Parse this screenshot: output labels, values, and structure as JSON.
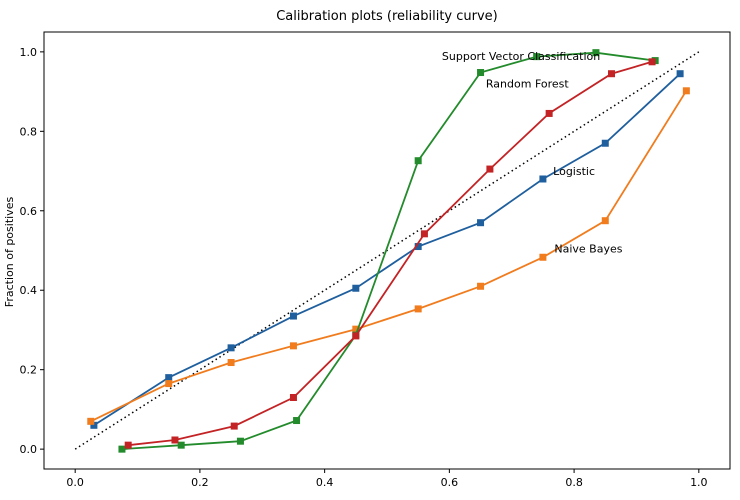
{
  "chart_data": {
    "type": "line",
    "title": "Calibration plots  (reliability curve)",
    "xlabel": "",
    "ylabel": "Fraction of positives",
    "xlim": [
      -0.05,
      1.05
    ],
    "ylim": [
      -0.05,
      1.05
    ],
    "x_ticks": [
      "0.0",
      "0.2",
      "0.4",
      "0.6",
      "0.8",
      "1.0"
    ],
    "y_ticks": [
      "0.0",
      "0.2",
      "0.4",
      "0.6",
      "0.8",
      "1.0"
    ],
    "grid": false,
    "legend": "none",
    "reference_line": {
      "x": [
        0,
        1
      ],
      "y": [
        0,
        1
      ],
      "style": "dotted",
      "color": "#000000"
    },
    "series": [
      {
        "name": "Logistic",
        "color": "#1f5f9e",
        "x": [
          0.03,
          0.15,
          0.25,
          0.35,
          0.45,
          0.55,
          0.65,
          0.75,
          0.85,
          0.97
        ],
        "y": [
          0.06,
          0.18,
          0.255,
          0.335,
          0.405,
          0.51,
          0.57,
          0.68,
          0.77,
          0.945
        ]
      },
      {
        "name": "Naive Bayes",
        "color": "#f07c1e",
        "x": [
          0.025,
          0.15,
          0.25,
          0.35,
          0.45,
          0.55,
          0.65,
          0.75,
          0.85,
          0.98
        ],
        "y": [
          0.07,
          0.165,
          0.218,
          0.26,
          0.302,
          0.353,
          0.41,
          0.483,
          0.575,
          0.902
        ]
      },
      {
        "name": "Support Vector Classification",
        "color": "#238b2b",
        "x": [
          0.075,
          0.17,
          0.265,
          0.355,
          0.45,
          0.55,
          0.65,
          0.74,
          0.835,
          0.93
        ],
        "y": [
          0.0,
          0.01,
          0.02,
          0.072,
          0.287,
          0.726,
          0.948,
          0.988,
          0.998,
          0.978
        ]
      },
      {
        "name": "Random Forest",
        "color": "#c32325",
        "x": [
          0.085,
          0.16,
          0.255,
          0.35,
          0.45,
          0.56,
          0.665,
          0.76,
          0.86,
          0.925
        ],
        "y": [
          0.01,
          0.023,
          0.058,
          0.13,
          0.285,
          0.542,
          0.705,
          0.845,
          0.945,
          0.975
        ]
      }
    ],
    "annotations": [
      {
        "text": "Support Vector Classification",
        "x": 0.715,
        "y": 0.98
      },
      {
        "text": "Random Forest",
        "x": 0.725,
        "y": 0.91
      },
      {
        "text": "Logistic",
        "x": 0.8,
        "y": 0.69
      },
      {
        "text": "Naive Bayes",
        "x": 0.823,
        "y": 0.495
      }
    ]
  }
}
